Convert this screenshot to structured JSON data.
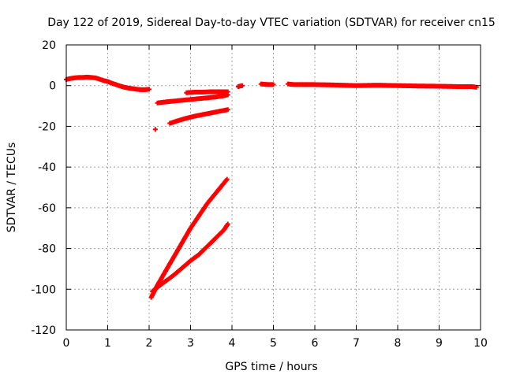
{
  "chart_data": {
    "type": "scatter",
    "title": "Day 122 of 2019, Sidereal Day-to-day VTEC variation (SDTVAR) for receiver cn15",
    "xlabel": "GPS time / hours",
    "ylabel": "SDTVAR / TECUs",
    "xlim": [
      0,
      10
    ],
    "ylim": [
      -120,
      20
    ],
    "xticks": [
      0,
      1,
      2,
      3,
      4,
      5,
      6,
      7,
      8,
      9,
      10
    ],
    "yticks": [
      -120,
      -100,
      -80,
      -60,
      -40,
      -20,
      0,
      20
    ],
    "grid": true,
    "legend": "none",
    "color": "#ff0000",
    "series": [
      {
        "x": [
          0.0,
          0.1,
          0.2,
          0.3,
          0.4,
          0.5,
          0.6,
          0.7,
          0.8,
          0.9,
          1.0,
          1.1,
          1.2,
          1.3,
          1.4,
          1.5,
          1.6,
          1.7,
          1.8,
          1.9,
          2.0
        ],
        "y": [
          3.0,
          3.5,
          3.8,
          4.0,
          4.0,
          4.2,
          4.0,
          3.8,
          3.2,
          2.5,
          2.0,
          1.2,
          0.5,
          -0.2,
          -0.8,
          -1.2,
          -1.5,
          -1.8,
          -2.0,
          -2.0,
          -1.8
        ]
      },
      {
        "x": [
          2.15
        ],
        "y": [
          -21.5
        ]
      },
      {
        "x": [
          2.2,
          2.4,
          2.6,
          2.8,
          3.0,
          3.2,
          3.4,
          3.6,
          3.8,
          3.9
        ],
        "y": [
          -8.5,
          -8.0,
          -7.6,
          -7.2,
          -6.8,
          -6.4,
          -6.0,
          -5.6,
          -5.0,
          -4.5
        ]
      },
      {
        "x": [
          2.9,
          3.1,
          3.3,
          3.5,
          3.7,
          3.9
        ],
        "y": [
          -3.5,
          -3.2,
          -3.2,
          -3.0,
          -3.0,
          -3.0
        ]
      },
      {
        "x": [
          2.5,
          2.7,
          2.9,
          3.1,
          3.3,
          3.5,
          3.7,
          3.9
        ],
        "y": [
          -18.5,
          -17.2,
          -16.0,
          -15.0,
          -14.2,
          -13.4,
          -12.6,
          -11.8
        ]
      },
      {
        "x": [
          2.05,
          2.2,
          2.4,
          2.6,
          2.8,
          3.0,
          3.2,
          3.4,
          3.6,
          3.8,
          3.88
        ],
        "y": [
          -104,
          -98,
          -91,
          -84,
          -77,
          -70,
          -64,
          -58,
          -53,
          -48,
          -46
        ]
      },
      {
        "x": [
          2.08,
          2.2,
          2.4,
          2.6,
          2.8,
          3.0,
          3.2,
          3.4,
          3.6,
          3.8,
          3.9
        ],
        "y": [
          -101,
          -99,
          -96,
          -93,
          -89.5,
          -86,
          -83,
          -79,
          -75,
          -71,
          -68
        ]
      },
      {
        "x": [
          4.15,
          4.2,
          4.25
        ],
        "y": [
          -0.5,
          -0.2,
          0.0
        ]
      },
      {
        "x": [
          4.7,
          4.8,
          4.9,
          5.0
        ],
        "y": [
          0.8,
          0.6,
          0.5,
          0.5
        ]
      },
      {
        "x": [
          5.35,
          5.5,
          6.0,
          6.5,
          7.0,
          7.5,
          8.0,
          8.5,
          9.0,
          9.5,
          9.8,
          9.9
        ],
        "y": [
          0.8,
          0.5,
          0.5,
          0.3,
          0.0,
          0.2,
          0.0,
          -0.2,
          -0.3,
          -0.5,
          -0.5,
          -0.8
        ]
      }
    ]
  }
}
